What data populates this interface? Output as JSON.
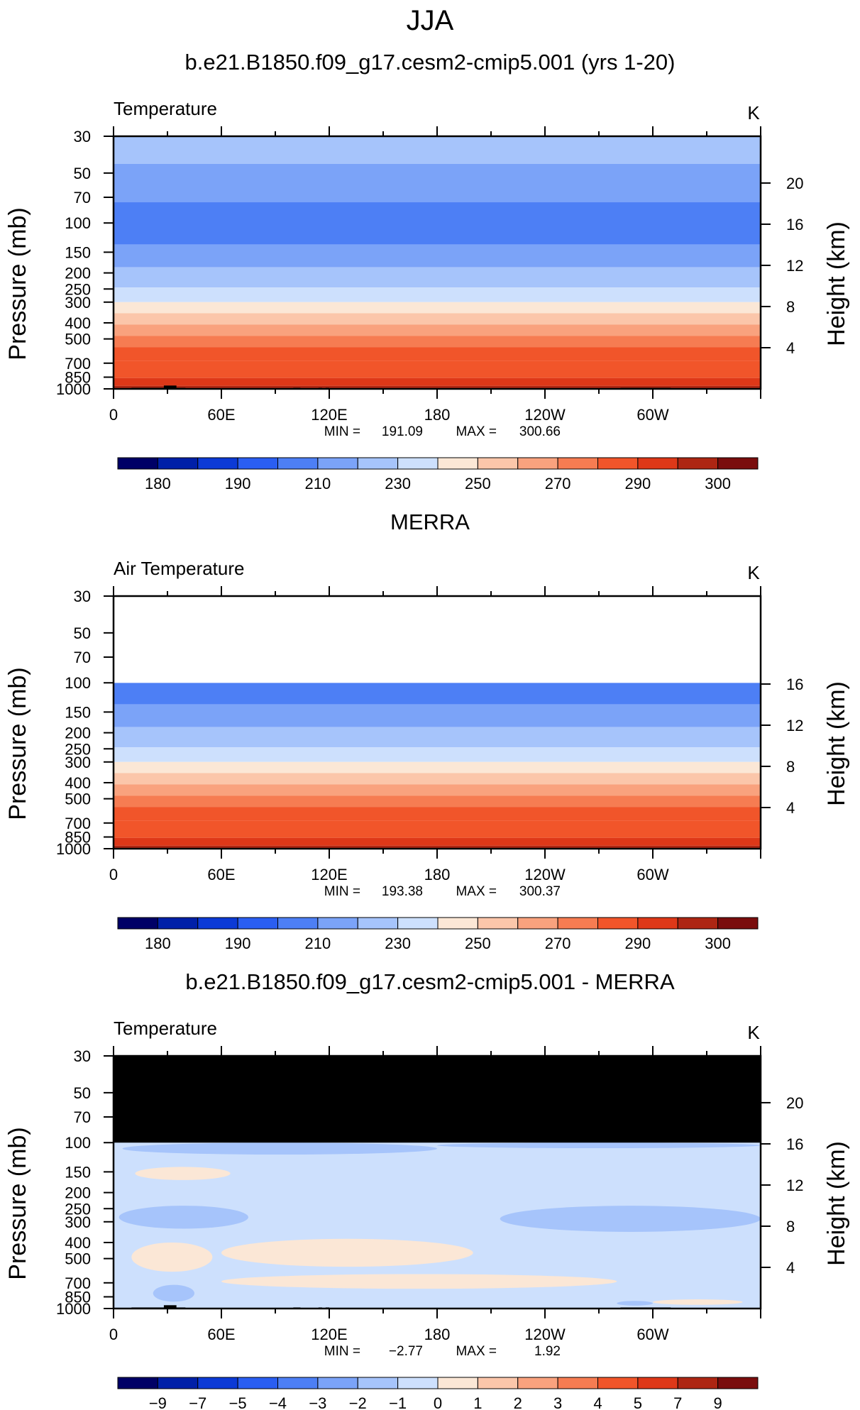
{
  "figure": {
    "season": "JJA"
  },
  "chart_data": [
    {
      "type": "heatmap",
      "title": "b.e21.B1850.f09_g17.cesm2-cmip5.001 (yrs 1-20)",
      "left_label": "Temperature",
      "right_label": "K",
      "ylabel": "Pressure (mb)",
      "y2label": "Height (km)",
      "x_ticks": [
        "0",
        "60E",
        "120E",
        "180",
        "120W",
        "60W"
      ],
      "y_ticks": [
        "30",
        "50",
        "70",
        "100",
        "150",
        "200",
        "250",
        "300",
        "400",
        "500",
        "700",
        "850",
        "1000"
      ],
      "y2_ticks": [
        "20",
        "16",
        "12",
        "8",
        "4"
      ],
      "stats": {
        "min_label": "MIN =",
        "min": "191.09",
        "max_label": "MAX =",
        "max": "300.66"
      },
      "colorbar": {
        "labels": [
          "180",
          "190",
          "210",
          "230",
          "250",
          "270",
          "290",
          "300"
        ]
      },
      "bands": [
        {
          "p_top": 30,
          "p_bot": 44,
          "value": 220
        },
        {
          "p_top": 44,
          "p_bot": 75,
          "value": 210
        },
        {
          "p_top": 75,
          "p_bot": 135,
          "value": 200
        },
        {
          "p_top": 135,
          "p_bot": 185,
          "value": 210
        },
        {
          "p_top": 185,
          "p_bot": 245,
          "value": 220
        },
        {
          "p_top": 245,
          "p_bot": 300,
          "value": 230
        },
        {
          "p_top": 300,
          "p_bot": 350,
          "value": 240
        },
        {
          "p_top": 350,
          "p_bot": 410,
          "value": 250
        },
        {
          "p_top": 410,
          "p_bot": 480,
          "value": 260
        },
        {
          "p_top": 480,
          "p_bot": 560,
          "value": 270
        },
        {
          "p_top": 560,
          "p_bot": 680,
          "value": 280
        },
        {
          "p_top": 680,
          "p_bot": 860,
          "value": 285
        },
        {
          "p_top": 860,
          "p_bot": 960,
          "value": 290
        },
        {
          "p_top": 960,
          "p_bot": 1000,
          "value": 295
        }
      ],
      "terrain": [
        {
          "lon_start": 10,
          "lon_end": 40,
          "p_top": 985
        },
        {
          "lon_start": 28,
          "lon_end": 35,
          "p_top": 955
        },
        {
          "lon_start": 100,
          "lon_end": 104,
          "p_top": 985
        },
        {
          "lon_start": 114,
          "lon_end": 116,
          "p_top": 985
        },
        {
          "lon_start": 118,
          "lon_end": 120,
          "p_top": 985
        },
        {
          "lon_start": 282,
          "lon_end": 310,
          "p_top": 985
        }
      ]
    },
    {
      "type": "heatmap",
      "title": "MERRA",
      "left_label": "Air Temperature",
      "right_label": "K",
      "ylabel": "Pressure (mb)",
      "y2label": "Height (km)",
      "x_ticks": [
        "0",
        "60E",
        "120E",
        "180",
        "120W",
        "60W"
      ],
      "y_ticks": [
        "30",
        "50",
        "70",
        "100",
        "150",
        "200",
        "250",
        "300",
        "400",
        "500",
        "700",
        "850",
        "1000"
      ],
      "y2_ticks": [
        "16",
        "12",
        "8",
        "4"
      ],
      "stats": {
        "min_label": "MIN =",
        "min": "193.38",
        "max_label": "MAX =",
        "max": "300.37"
      },
      "colorbar": {
        "labels": [
          "180",
          "190",
          "210",
          "230",
          "250",
          "270",
          "290",
          "300"
        ]
      },
      "missing_above_p": 100,
      "bands": [
        {
          "p_top": 100,
          "p_bot": 135,
          "value": 200
        },
        {
          "p_top": 135,
          "p_bot": 185,
          "value": 210
        },
        {
          "p_top": 185,
          "p_bot": 245,
          "value": 220
        },
        {
          "p_top": 245,
          "p_bot": 300,
          "value": 230
        },
        {
          "p_top": 300,
          "p_bot": 350,
          "value": 240
        },
        {
          "p_top": 350,
          "p_bot": 410,
          "value": 250
        },
        {
          "p_top": 410,
          "p_bot": 480,
          "value": 260
        },
        {
          "p_top": 480,
          "p_bot": 560,
          "value": 270
        },
        {
          "p_top": 560,
          "p_bot": 680,
          "value": 280
        },
        {
          "p_top": 680,
          "p_bot": 860,
          "value": 285
        },
        {
          "p_top": 860,
          "p_bot": 960,
          "value": 290
        },
        {
          "p_top": 960,
          "p_bot": 1000,
          "value": 295
        }
      ],
      "terrain": [
        {
          "lon_start": 15,
          "lon_end": 38,
          "p_top": 990
        }
      ]
    },
    {
      "type": "heatmap",
      "title": "b.e21.B1850.f09_g17.cesm2-cmip5.001 - MERRA",
      "left_label": "Temperature",
      "right_label": "K",
      "ylabel": "Pressure (mb)",
      "y2label": "Height (km)",
      "x_ticks": [
        "0",
        "60E",
        "120E",
        "180",
        "120W",
        "60W"
      ],
      "y_ticks": [
        "30",
        "50",
        "70",
        "100",
        "150",
        "200",
        "250",
        "300",
        "400",
        "500",
        "700",
        "850",
        "1000"
      ],
      "y2_ticks": [
        "20",
        "16",
        "12",
        "8",
        "4"
      ],
      "stats": {
        "min_label": "MIN =",
        "min": "−2.77",
        "max_label": "MAX =",
        "max": "1.92"
      },
      "colorbar": {
        "labels": [
          "−9",
          "−7",
          "−5",
          "−4",
          "−3",
          "−2",
          "−1",
          "0",
          "1",
          "2",
          "3",
          "4",
          "5",
          "7",
          "9"
        ]
      },
      "missing_above_p": 100,
      "background_value": -0.5,
      "blobs": [
        {
          "lon_start": 5,
          "lon_end": 180,
          "p_top": 100,
          "p_bot": 118,
          "value": -1.5
        },
        {
          "lon_start": 180,
          "lon_end": 360,
          "p_top": 100,
          "p_bot": 108,
          "value": -1.5
        },
        {
          "lon_start": 12,
          "lon_end": 65,
          "p_top": 140,
          "p_bot": 168,
          "value": 0.5
        },
        {
          "lon_start": 3,
          "lon_end": 75,
          "p_top": 240,
          "p_bot": 330,
          "value": -1.5
        },
        {
          "lon_start": 215,
          "lon_end": 360,
          "p_top": 240,
          "p_bot": 345,
          "value": -1.5
        },
        {
          "lon_start": 10,
          "lon_end": 55,
          "p_top": 400,
          "p_bot": 600,
          "value": 0.5
        },
        {
          "lon_start": 60,
          "lon_end": 200,
          "p_top": 380,
          "p_bot": 560,
          "value": 0.5
        },
        {
          "lon_start": 60,
          "lon_end": 280,
          "p_top": 620,
          "p_bot": 760,
          "value": 0.5
        },
        {
          "lon_start": 22,
          "lon_end": 45,
          "p_top": 720,
          "p_bot": 910,
          "value": -1.5
        },
        {
          "lon_start": 300,
          "lon_end": 350,
          "p_top": 880,
          "p_bot": 950,
          "value": 0.5
        },
        {
          "lon_start": 280,
          "lon_end": 300,
          "p_top": 900,
          "p_bot": 960,
          "value": -1.5
        }
      ],
      "terrain": [
        {
          "lon_start": 10,
          "lon_end": 40,
          "p_top": 985
        },
        {
          "lon_start": 28,
          "lon_end": 35,
          "p_top": 955
        },
        {
          "lon_start": 100,
          "lon_end": 104,
          "p_top": 985
        },
        {
          "lon_start": 114,
          "lon_end": 116,
          "p_top": 985
        },
        {
          "lon_start": 118,
          "lon_end": 120,
          "p_top": 985
        },
        {
          "lon_start": 282,
          "lon_end": 310,
          "p_top": 985
        }
      ]
    }
  ],
  "palettes": {
    "temperature": {
      "thresholds": [
        180,
        185,
        190,
        200,
        210,
        220,
        230,
        240,
        250,
        260,
        270,
        280,
        290,
        295,
        300
      ],
      "colors": [
        "#000066",
        "#0020a8",
        "#0c3ad6",
        "#2a5ef2",
        "#4d7ff5",
        "#7ba3f8",
        "#a6c4fb",
        "#cde0fd",
        "#fbe7d6",
        "#fbc6aa",
        "#f9a27e",
        "#f67c52",
        "#f1552a",
        "#de3818",
        "#ad2613",
        "#7a0d0d"
      ]
    },
    "difference": {
      "thresholds": [
        -9,
        -7,
        -5,
        -4,
        -3,
        -2,
        -1,
        0,
        1,
        2,
        3,
        4,
        5,
        7,
        9
      ],
      "colors": [
        "#000066",
        "#0020a8",
        "#0c3ad6",
        "#2a5ef2",
        "#4d7ff5",
        "#7ba3f8",
        "#a6c4fb",
        "#cde0fd",
        "#fbe7d6",
        "#fbc6aa",
        "#f9a27e",
        "#f67c52",
        "#f1552a",
        "#de3818",
        "#ad2613",
        "#7a0d0d"
      ]
    },
    "missing": "#ffffff",
    "masked": "#000000",
    "terrain": "#000000"
  }
}
